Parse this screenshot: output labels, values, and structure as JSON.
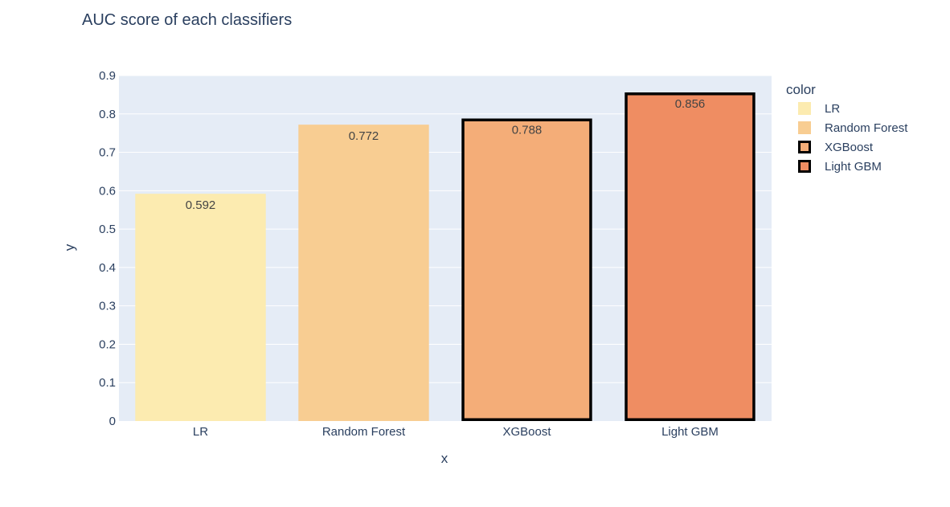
{
  "chart_data": {
    "type": "bar",
    "title": "AUC score of each classifiers",
    "xlabel": "x",
    "ylabel": "y",
    "categories": [
      "LR",
      "Random Forest",
      "XGBoost",
      "Light GBM"
    ],
    "values": [
      0.592,
      0.772,
      0.788,
      0.856
    ],
    "data_labels": [
      "0.592",
      "0.772",
      "0.788",
      "0.856"
    ],
    "ylim": [
      0,
      0.9
    ],
    "yticks": [
      0,
      0.1,
      0.2,
      0.3,
      0.4,
      0.5,
      0.6,
      0.7,
      0.8,
      0.9
    ],
    "ytick_labels": [
      "0",
      "0.1",
      "0.2",
      "0.3",
      "0.4",
      "0.5",
      "0.6",
      "0.7",
      "0.8",
      "0.9"
    ],
    "grid": true,
    "legend": {
      "title": "color",
      "placement": "right",
      "entries": [
        "LR",
        "Random Forest",
        "XGBoost",
        "Light GBM"
      ]
    },
    "colors": [
      "#fcebb0",
      "#f8cd92",
      "#f4ad78",
      "#ef8d62"
    ],
    "outlined": [
      false,
      false,
      true,
      true
    ],
    "plot_background": "#e5ecf6"
  }
}
